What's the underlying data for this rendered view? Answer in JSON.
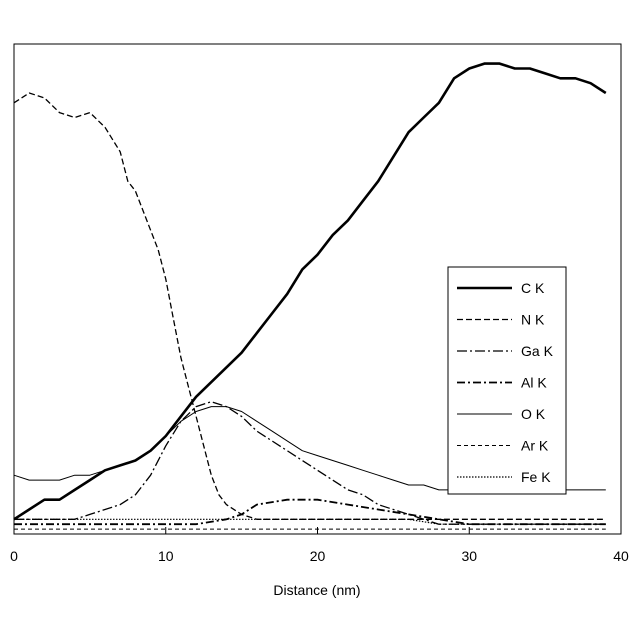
{
  "chart_data": {
    "type": "line",
    "xlabel": "Distance (nm)",
    "ylabel": "",
    "title": "",
    "xlim": [
      0,
      40
    ],
    "ylim": [
      0,
      100
    ],
    "xticks": [
      0,
      10,
      20,
      30,
      40
    ],
    "grid": false,
    "legend_position": "right",
    "series": [
      {
        "name": "C K",
        "x": [
          0,
          1,
          2,
          3,
          4,
          5,
          6,
          7,
          8,
          9,
          10,
          11,
          12,
          13,
          14,
          15,
          16,
          17,
          18,
          19,
          20,
          21,
          22,
          23,
          24,
          25,
          26,
          27,
          28,
          29,
          30,
          31,
          32,
          33,
          34,
          35,
          36,
          37,
          38,
          39
        ],
        "y": [
          3,
          5,
          7,
          7,
          9,
          11,
          13,
          14,
          15,
          17,
          20,
          24,
          28,
          31,
          34,
          37,
          41,
          45,
          49,
          54,
          57,
          61,
          64,
          68,
          72,
          77,
          82,
          85,
          88,
          93,
          95,
          96,
          96,
          95,
          95,
          94,
          93,
          93,
          92,
          90
        ]
      },
      {
        "name": "N K",
        "x": [
          0,
          1,
          2,
          3,
          4,
          5,
          6,
          7,
          7.5,
          8,
          9,
          9.5,
          10,
          10.5,
          11,
          11.5,
          12,
          12.5,
          13,
          13.5,
          14,
          15,
          16,
          17,
          18,
          20,
          22,
          24,
          26,
          28,
          30,
          32,
          34,
          36,
          38,
          39
        ],
        "y": [
          88,
          90,
          89,
          86,
          85,
          86,
          83,
          78,
          72,
          70,
          62,
          58,
          52,
          44,
          36,
          30,
          24,
          18,
          12,
          8,
          6,
          4,
          3,
          3,
          3,
          3,
          3,
          3,
          3,
          3,
          3,
          3,
          3,
          3,
          3,
          3
        ]
      },
      {
        "name": "Ga K",
        "x": [
          0,
          2,
          4,
          5,
          6,
          7,
          8,
          9,
          10,
          11,
          12,
          13,
          14,
          15,
          16,
          17,
          18,
          19,
          20,
          21,
          22,
          23,
          24,
          25,
          26,
          27,
          28,
          30,
          32,
          34,
          36,
          38,
          39
        ],
        "y": [
          3,
          3,
          3,
          4,
          5,
          6,
          8,
          12,
          18,
          23,
          26,
          27,
          26,
          24,
          21,
          19,
          17,
          15,
          13,
          11,
          9,
          8,
          6,
          5,
          4,
          3,
          2,
          2,
          2,
          2,
          2,
          2,
          2
        ]
      },
      {
        "name": "Al K",
        "x": [
          0,
          2,
          4,
          6,
          8,
          10,
          12,
          14,
          15,
          16,
          18,
          20,
          22,
          24,
          26,
          28,
          30,
          32,
          34,
          36,
          38,
          39
        ],
        "y": [
          2,
          2,
          2,
          2,
          2,
          2,
          2,
          3,
          4,
          6,
          7,
          7,
          6,
          5,
          4,
          3,
          2,
          2,
          2,
          2,
          2,
          2
        ]
      },
      {
        "name": "O K",
        "x": [
          0,
          1,
          2,
          3,
          4,
          5,
          6,
          7,
          8,
          9,
          10,
          11,
          12,
          13,
          14,
          15,
          16,
          17,
          18,
          19,
          20,
          21,
          22,
          23,
          24,
          25,
          26,
          27,
          28,
          30,
          32,
          34,
          36,
          38,
          39
        ],
        "y": [
          12,
          11,
          11,
          11,
          12,
          12,
          13,
          14,
          15,
          17,
          20,
          23,
          25,
          26,
          26,
          25,
          23,
          21,
          19,
          17,
          16,
          15,
          14,
          13,
          12,
          11,
          10,
          10,
          9,
          9,
          9,
          9,
          9,
          9,
          9
        ]
      },
      {
        "name": "Ar K",
        "x": [
          0,
          2,
          4,
          6,
          8,
          10,
          12,
          14,
          16,
          18,
          20,
          22,
          24,
          26,
          28,
          30,
          32,
          34,
          36,
          38,
          39
        ],
        "y": [
          1,
          1,
          1,
          1,
          1,
          1,
          1,
          1,
          1,
          1,
          1,
          1,
          1,
          1,
          1,
          1,
          1,
          1,
          1,
          1,
          1
        ]
      },
      {
        "name": "Fe K",
        "x": [
          0,
          2,
          4,
          6,
          8,
          10,
          12,
          14,
          16,
          18,
          20,
          22,
          24,
          26,
          28,
          30,
          32,
          34,
          36,
          38,
          39
        ],
        "y": [
          3,
          3,
          3,
          3,
          3,
          3,
          3,
          3,
          3,
          3,
          3,
          3,
          3,
          3,
          2,
          2,
          2,
          2,
          2,
          2,
          2
        ]
      }
    ]
  }
}
